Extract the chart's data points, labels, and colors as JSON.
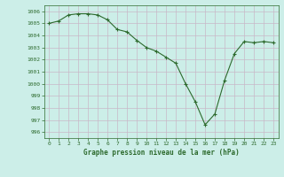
{
  "x": [
    0,
    1,
    2,
    3,
    4,
    5,
    6,
    7,
    8,
    9,
    10,
    11,
    12,
    13,
    14,
    15,
    16,
    17,
    18,
    19,
    20,
    21,
    22,
    23
  ],
  "y": [
    1005.0,
    1005.2,
    1005.7,
    1005.8,
    1005.8,
    1005.7,
    1005.3,
    1004.5,
    1004.3,
    1003.6,
    1003.0,
    1002.7,
    1002.2,
    1001.7,
    1000.0,
    998.5,
    996.6,
    997.5,
    1000.3,
    1002.5,
    1003.5,
    1003.4,
    1003.5,
    1003.4
  ],
  "xlabel": "Graphe pression niveau de la mer (hPa)",
  "ylim": [
    995.5,
    1006.5
  ],
  "yticks": [
    996,
    997,
    998,
    999,
    1000,
    1001,
    1002,
    1003,
    1004,
    1005,
    1006
  ],
  "xticks": [
    0,
    1,
    2,
    3,
    4,
    5,
    6,
    7,
    8,
    9,
    10,
    11,
    12,
    13,
    14,
    15,
    16,
    17,
    18,
    19,
    20,
    21,
    22,
    23
  ],
  "line_color": "#2d6a2d",
  "marker_color": "#2d6a2d",
  "bg_color": "#cceee8",
  "plot_bg_color": "#cceee8",
  "grid_color": "#c8b8c8",
  "label_color": "#2d6a2d",
  "xlabel_color": "#2d6a2d",
  "tick_color": "#2d6a2d",
  "spine_color": "#2d6a2d"
}
